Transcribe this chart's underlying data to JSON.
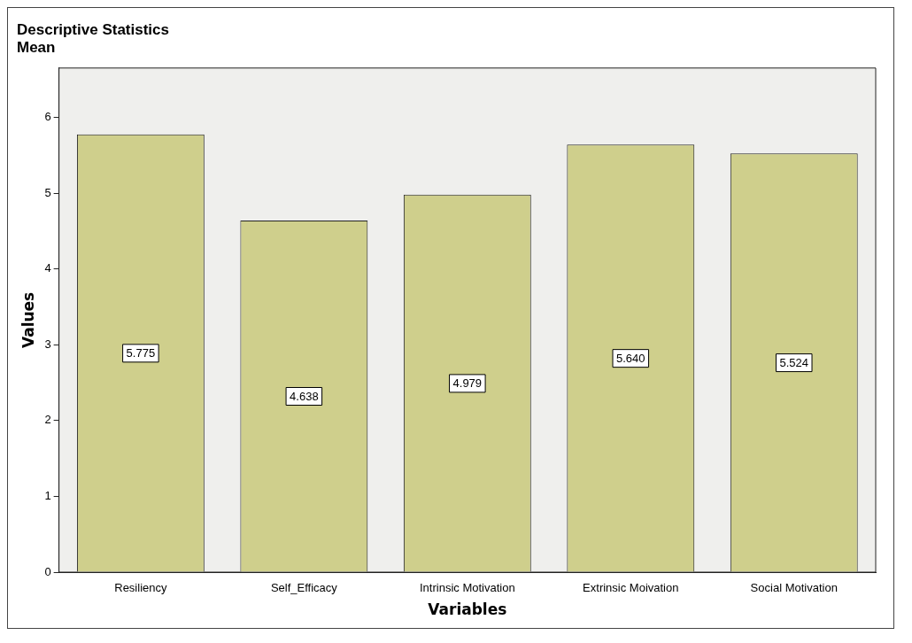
{
  "chart_data": {
    "type": "bar",
    "title": "Descriptive Statistics",
    "subtitle": "Mean",
    "xlabel": "Variables",
    "ylabel": "Values",
    "categories": [
      "Resiliency",
      "Self_Efficacy",
      "Intrinsic Motivation",
      "Extrinsic Moivation",
      "Social Motivation"
    ],
    "values": [
      5.775,
      4.638,
      4.979,
      5.64,
      5.524
    ],
    "value_labels": [
      "5.775",
      "4.638",
      "4.979",
      "5.640",
      "5.524"
    ],
    "color": "#cfcf8c",
    "ylim": [
      0,
      6.65
    ],
    "yticks": [
      0,
      1,
      2,
      3,
      4,
      5,
      6
    ],
    "grid": false,
    "legend": false
  }
}
